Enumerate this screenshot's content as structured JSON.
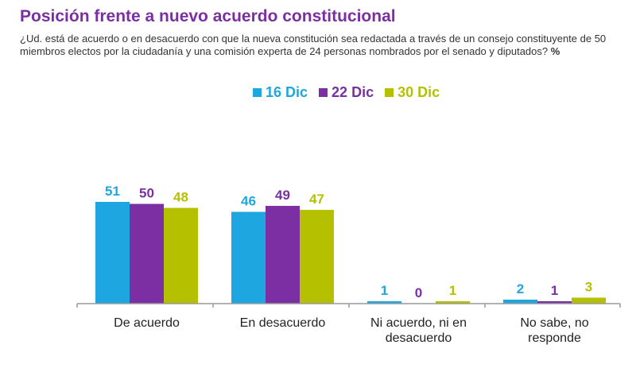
{
  "header": {
    "title": "Posición frente a nuevo acuerdo constitucional",
    "question": "¿Ud. está de acuerdo o en desacuerdo con que la nueva constitución sea redactada a través de un consejo constituyente de 50 miembros electos por la ciudadanía y una comisión experta de 24 personas nombrados por el senado y diputados?",
    "unit": "%"
  },
  "colors": {
    "title": "#7B2FA3",
    "series": [
      "#1EA6E0",
      "#7B2FA3",
      "#B5C000"
    ]
  },
  "chart_data": {
    "type": "bar",
    "title": "Posición frente a nuevo acuerdo constitucional",
    "categories": [
      [
        "De acuerdo"
      ],
      [
        "En desacuerdo"
      ],
      [
        "Ni acuerdo, ni en",
        "desacuerdo"
      ],
      [
        "No sabe, no",
        "responde"
      ]
    ],
    "series": [
      {
        "name": "16 Dic",
        "values": [
          51,
          46,
          1,
          2
        ]
      },
      {
        "name": "22 Dic",
        "values": [
          50,
          49,
          0,
          1
        ]
      },
      {
        "name": "30 Dic",
        "values": [
          48,
          47,
          1,
          3
        ]
      }
    ],
    "ylim": [
      0,
      60
    ],
    "grid": false,
    "legend_position": "top-center",
    "xlabel": "",
    "ylabel": ""
  }
}
